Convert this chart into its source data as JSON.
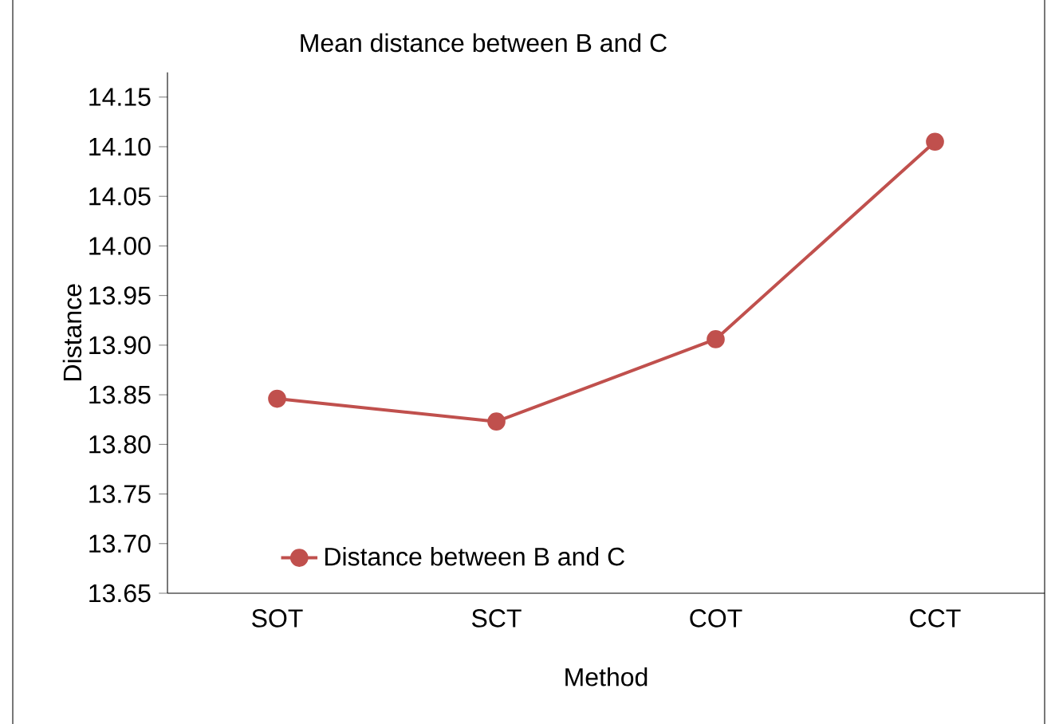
{
  "chart_data": {
    "type": "line",
    "title": "Mean distance between B and C",
    "xlabel": "Method",
    "ylabel": "Distance",
    "categories": [
      "SOT",
      "SCT",
      "COT",
      "CCT"
    ],
    "series": [
      {
        "name": "Distance between B and C",
        "color": "#c0504d",
        "values": [
          13.846,
          13.823,
          13.906,
          14.105
        ]
      }
    ],
    "ylim": [
      13.65,
      14.175
    ],
    "yticks": [
      13.65,
      {
        "value": 13.7,
        "label": "13.70"
      },
      13.75,
      {
        "value": 13.8,
        "label": "13.80"
      },
      13.85,
      {
        "value": 13.9,
        "label": "13.90"
      },
      13.95,
      {
        "value": 14.0,
        "label": "14.00"
      },
      14.05,
      {
        "value": 14.1,
        "label": "14.10"
      },
      14.15
    ],
    "marker": "circle",
    "line_style": "solid",
    "legend": "bottom left",
    "grid": false
  }
}
